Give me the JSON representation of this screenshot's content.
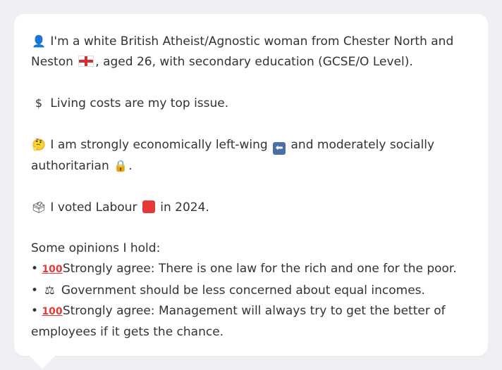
{
  "profile": {
    "line1_prefix": "I'm a white British Atheist/Agnostic woman from Chester North and Neston",
    "line1_suffix": ", aged 26, with secondary education (GCSE/O Level).",
    "issue": "Living costs are my top issue.",
    "position_prefix": "I am strongly economically left-wing",
    "position_middle": "and moderately socially authoritarian",
    "position_suffix": ".",
    "vote_prefix": "I voted Labour",
    "vote_suffix": "in 2024.",
    "opinions_heading": "Some opinions I hold:",
    "opinions": [
      {
        "bullet": "•",
        "icon": "hundred-icon",
        "text": "Strongly agree: There is one law for the rich and one for the poor."
      },
      {
        "bullet": "•",
        "icon": "judge-icon",
        "text": "Government should be less concerned about equal incomes."
      },
      {
        "bullet": "•",
        "icon": "hundred-icon",
        "text": "Strongly agree: Management will always try to get the better of employees if it gets the chance."
      }
    ]
  },
  "icons": {
    "person": "person-icon",
    "flag": "england-flag-icon",
    "dollar": "dollar-icon",
    "thinking": "thinking-face-icon",
    "left_arrow": "left-arrow-icon",
    "lock": "lock-icon",
    "ballot": "ballot-box-icon",
    "red_square": "red-square-icon"
  },
  "colors": {
    "background": "#eef0f4",
    "bubble": "#ffffff",
    "text": "#333333",
    "labour_red": "#e53935"
  }
}
